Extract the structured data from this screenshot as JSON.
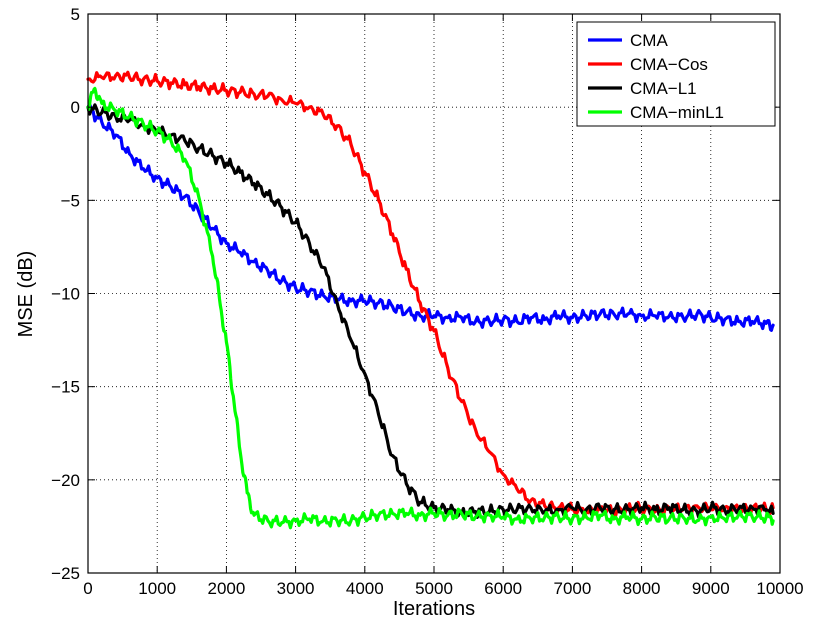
{
  "chart_data": {
    "type": "line",
    "title": "",
    "xlabel": "Iterations",
    "ylabel": "MSE (dB)",
    "xlim": [
      0,
      10000
    ],
    "ylim": [
      -25,
      5
    ],
    "xticks": [
      0,
      1000,
      2000,
      3000,
      4000,
      5000,
      6000,
      7000,
      8000,
      9000,
      10000
    ],
    "yticks": [
      -25,
      -20,
      -15,
      -10,
      -5,
      0,
      5
    ],
    "xtick_labels": [
      "0",
      "1000",
      "2000",
      "3000",
      "4000",
      "5000",
      "6000",
      "7000",
      "8000",
      "9000",
      "10000"
    ],
    "ytick_labels": [
      "−25",
      "−20",
      "−15",
      "−10",
      "−5",
      "0",
      "5"
    ],
    "grid": true,
    "legend_position": "top-right",
    "series": [
      {
        "name": "CMA",
        "color": "#0000ff",
        "x": [
          0,
          200,
          400,
          600,
          800,
          1000,
          1200,
          1400,
          1600,
          1800,
          2000,
          2200,
          2400,
          2600,
          2800,
          3000,
          3200,
          3400,
          3600,
          3800,
          4000,
          4200,
          4400,
          4600,
          4800,
          5000,
          5200,
          5400,
          5600,
          5800,
          6000,
          6200,
          6400,
          6600,
          6800,
          7000,
          7200,
          7400,
          7600,
          7800,
          8000,
          8200,
          8400,
          8600,
          8800,
          9000,
          9200,
          9400,
          9600,
          9800,
          9900
        ],
        "y": [
          0.0,
          -0.8,
          -1.5,
          -2.5,
          -3.3,
          -3.8,
          -4.3,
          -4.8,
          -5.6,
          -6.5,
          -7.3,
          -7.8,
          -8.3,
          -8.8,
          -9.3,
          -9.7,
          -9.9,
          -10.1,
          -10.3,
          -10.4,
          -10.4,
          -10.5,
          -10.7,
          -11.0,
          -11.2,
          -11.2,
          -11.3,
          -11.3,
          -11.5,
          -11.5,
          -11.4,
          -11.5,
          -11.3,
          -11.4,
          -11.2,
          -11.3,
          -11.2,
          -11.1,
          -11.1,
          -11.1,
          -11.2,
          -11.2,
          -11.2,
          -11.3,
          -11.1,
          -11.3,
          -11.4,
          -11.5,
          -11.5,
          -11.6,
          -11.7
        ]
      },
      {
        "name": "CMA−Cos",
        "color": "#ff0000",
        "x": [
          0,
          200,
          400,
          600,
          800,
          1000,
          1200,
          1400,
          1600,
          1800,
          2000,
          2200,
          2400,
          2600,
          2800,
          3000,
          3200,
          3400,
          3600,
          3800,
          4000,
          4200,
          4400,
          4600,
          4800,
          5000,
          5200,
          5400,
          5600,
          5800,
          6000,
          6200,
          6400,
          6600,
          6800,
          7000,
          7200,
          7400,
          7600,
          7800,
          8000,
          8200,
          8400,
          8600,
          8800,
          9000,
          9200,
          9400,
          9600,
          9800,
          9900
        ],
        "y": [
          1.5,
          1.6,
          1.7,
          1.6,
          1.5,
          1.4,
          1.3,
          1.2,
          1.1,
          1.0,
          0.9,
          0.8,
          0.7,
          0.6,
          0.4,
          0.2,
          0.0,
          -0.4,
          -1.0,
          -2.0,
          -3.5,
          -5.0,
          -6.8,
          -8.7,
          -10.5,
          -12.0,
          -14.0,
          -15.8,
          -17.3,
          -18.5,
          -19.7,
          -20.5,
          -21.1,
          -21.4,
          -21.5,
          -21.6,
          -21.7,
          -21.6,
          -21.7,
          -21.6,
          -21.5,
          -21.7,
          -21.5,
          -21.6,
          -21.4,
          -21.6,
          -21.5,
          -21.6,
          -21.5,
          -21.6,
          -21.5
        ]
      },
      {
        "name": "CMA−L1",
        "color": "#000000",
        "x": [
          0,
          200,
          400,
          600,
          800,
          1000,
          1200,
          1400,
          1600,
          1800,
          2000,
          2200,
          2400,
          2600,
          2800,
          3000,
          3200,
          3400,
          3600,
          3800,
          4000,
          4200,
          4400,
          4600,
          4800,
          5000,
          5200,
          5400,
          5600,
          5800,
          6000,
          6200,
          6400,
          6600,
          6800,
          7000,
          7200,
          7400,
          7600,
          7800,
          8000,
          8200,
          8400,
          8600,
          8800,
          9000,
          9200,
          9400,
          9600,
          9800,
          9900
        ],
        "y": [
          0.0,
          -0.3,
          -0.5,
          -0.7,
          -1.0,
          -1.3,
          -1.5,
          -1.8,
          -2.2,
          -2.6,
          -3.0,
          -3.5,
          -4.1,
          -4.7,
          -5.4,
          -6.2,
          -7.3,
          -8.6,
          -10.5,
          -12.5,
          -14.3,
          -16.5,
          -18.7,
          -20.2,
          -21.2,
          -21.5,
          -21.6,
          -21.8,
          -21.7,
          -21.7,
          -21.6,
          -21.6,
          -21.5,
          -21.7,
          -21.6,
          -21.5,
          -21.6,
          -21.5,
          -21.6,
          -21.6,
          -21.5,
          -21.6,
          -21.5,
          -21.6,
          -21.7,
          -21.5,
          -21.6,
          -21.6,
          -21.5,
          -21.6,
          -21.8
        ]
      },
      {
        "name": "CMA−minL1",
        "color": "#00ff00",
        "x": [
          0,
          100,
          200,
          400,
          600,
          800,
          1000,
          1200,
          1400,
          1600,
          1800,
          1900,
          2000,
          2100,
          2200,
          2300,
          2400,
          2600,
          2800,
          3000,
          3200,
          3400,
          3600,
          3800,
          4000,
          4200,
          4400,
          4600,
          4800,
          5000,
          5200,
          5400,
          5600,
          5800,
          6000,
          6200,
          6400,
          6600,
          6800,
          7000,
          7200,
          7400,
          7600,
          7800,
          8000,
          8200,
          8400,
          8600,
          8800,
          9000,
          9200,
          9400,
          9600,
          9800,
          9900
        ],
        "y": [
          0.0,
          1.0,
          0.2,
          -0.2,
          -0.5,
          -0.9,
          -1.3,
          -1.8,
          -2.8,
          -4.8,
          -8.0,
          -10.3,
          -12.6,
          -15.5,
          -18.5,
          -20.7,
          -21.9,
          -22.2,
          -22.3,
          -22.2,
          -22.1,
          -22.2,
          -22.2,
          -22.2,
          -22.0,
          -21.9,
          -21.8,
          -21.8,
          -21.9,
          -21.8,
          -21.9,
          -21.8,
          -22.0,
          -21.9,
          -22.0,
          -22.1,
          -22.1,
          -22.0,
          -22.0,
          -22.1,
          -22.0,
          -21.9,
          -22.1,
          -22.0,
          -22.1,
          -22.0,
          -22.1,
          -22.0,
          -22.2,
          -22.0,
          -22.1,
          -21.9,
          -22.0,
          -22.0,
          -22.2
        ]
      }
    ]
  }
}
